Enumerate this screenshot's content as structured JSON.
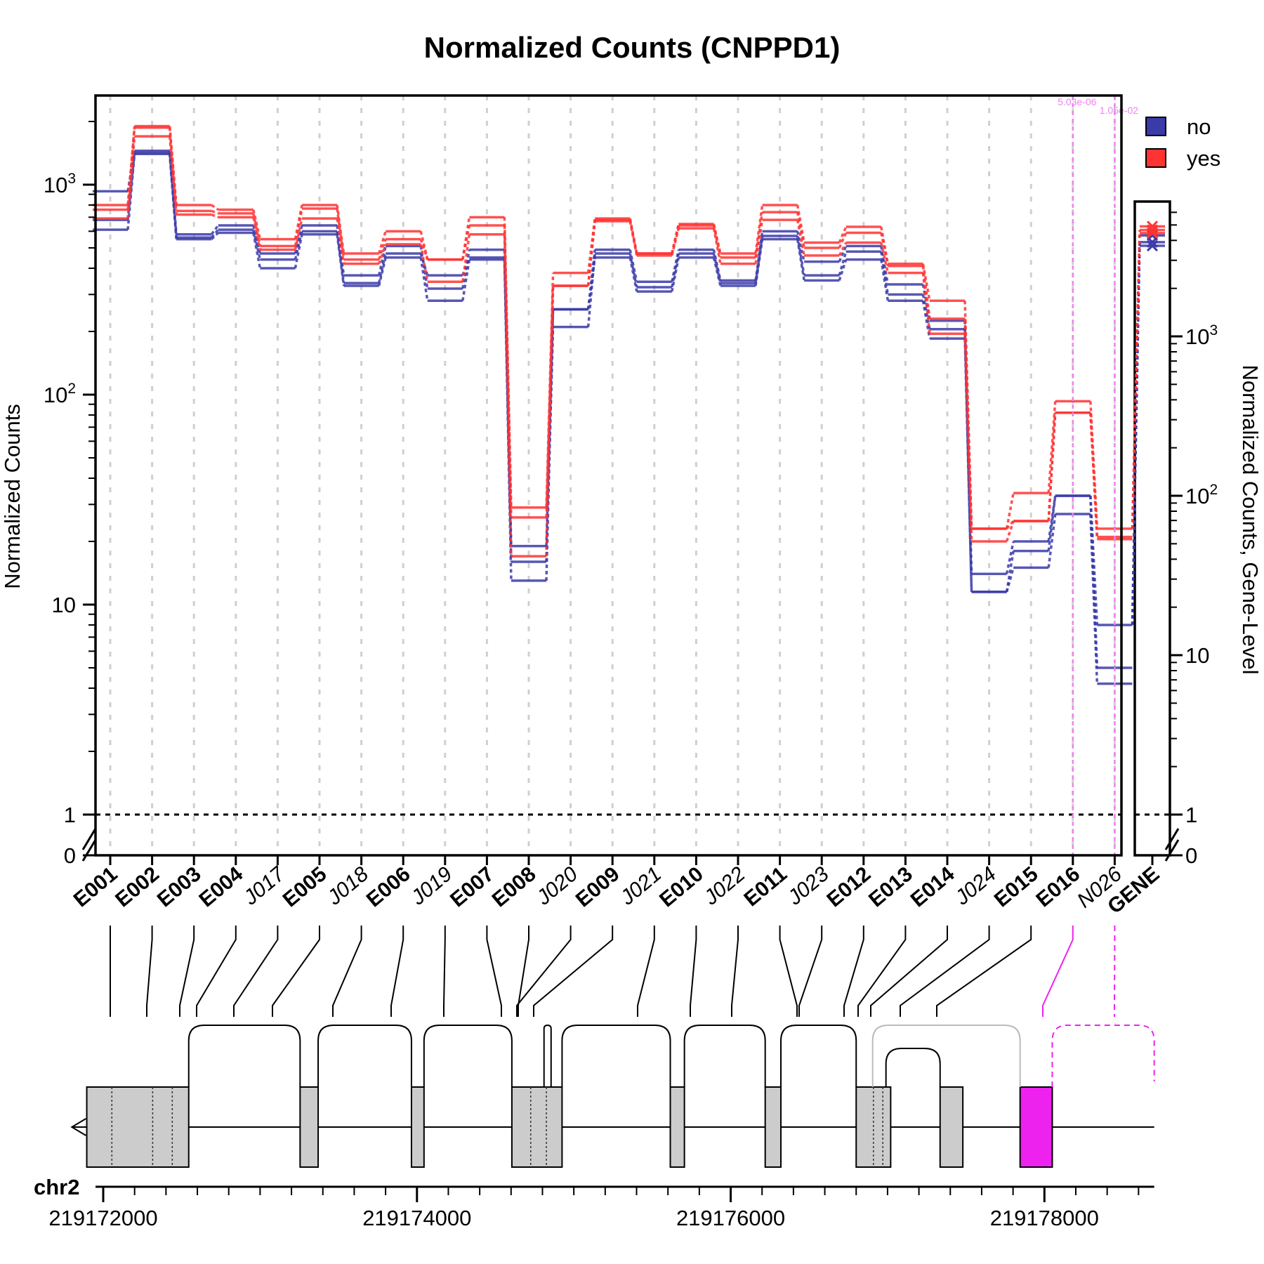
{
  "chart_data": {
    "type": "line",
    "title": "Normalized Counts (CNPPD1)",
    "ylabel": "Normalized Counts",
    "ylabel_right": "Normalized Counts, Gene-Level",
    "y_scale": "log",
    "ylim": [
      0,
      2500
    ],
    "y_ticks": [
      "0",
      "1",
      "10",
      "10^2",
      "10^3"
    ],
    "gene_y_ticks": [
      "0",
      "1",
      "10",
      "10^2",
      "10^3"
    ],
    "categories": [
      "E001",
      "E002",
      "E003",
      "E004",
      "J017",
      "E005",
      "J018",
      "E006",
      "J019",
      "E007",
      "E008",
      "J020",
      "E009",
      "J021",
      "E010",
      "J022",
      "E011",
      "J023",
      "E012",
      "E013",
      "E014",
      "J024",
      "E015",
      "E016",
      "N026"
    ],
    "category_style": [
      "exon",
      "exon",
      "exon",
      "exon",
      "junction",
      "exon",
      "junction",
      "exon",
      "junction",
      "exon",
      "exon",
      "junction",
      "exon",
      "junction",
      "exon",
      "junction",
      "exon",
      "junction",
      "exon",
      "exon",
      "exon",
      "junction",
      "exon",
      "exon",
      "novel"
    ],
    "gene_label": "GENE",
    "legend": [
      {
        "name": "no",
        "color": "#3a3aa8"
      },
      {
        "name": "yes",
        "color": "#ff3333"
      }
    ],
    "series": [
      {
        "name": "no",
        "color": "#3a3aa8",
        "values": [
          930,
          1450,
          580,
          640,
          470,
          640,
          370,
          510,
          320,
          490,
          19,
          255,
          490,
          345,
          490,
          350,
          600,
          430,
          510,
          335,
          225,
          14,
          20,
          33,
          8
        ]
      },
      {
        "name": "no",
        "color": "#3a3aa8",
        "values": [
          680,
          1420,
          560,
          610,
          440,
          600,
          340,
          470,
          370,
          450,
          16,
          210,
          470,
          325,
          470,
          340,
          570,
          370,
          480,
          300,
          205,
          11.5,
          18,
          33,
          5
        ]
      },
      {
        "name": "no",
        "color": "#3a3aa8",
        "values": [
          610,
          1400,
          550,
          590,
          400,
          580,
          330,
          450,
          280,
          440,
          13,
          255,
          450,
          310,
          450,
          330,
          550,
          350,
          440,
          280,
          185,
          11.5,
          15,
          27,
          4.2
        ]
      },
      {
        "name": "yes",
        "color": "#ff3333",
        "values": [
          800,
          1900,
          800,
          760,
          550,
          800,
          470,
          600,
          440,
          700,
          29,
          380,
          690,
          470,
          650,
          470,
          800,
          530,
          630,
          420,
          280,
          23,
          34,
          93,
          23
        ]
      },
      {
        "name": "yes",
        "color": "#ff3333",
        "values": [
          760,
          1870,
          750,
          730,
          510,
          770,
          440,
          550,
          440,
          640,
          26,
          330,
          680,
          470,
          640,
          450,
          740,
          500,
          590,
          410,
          230,
          23,
          25,
          82,
          21
        ]
      },
      {
        "name": "yes",
        "color": "#ff3333",
        "values": [
          690,
          1700,
          720,
          700,
          490,
          690,
          420,
          520,
          345,
          580,
          17,
          330,
          670,
          460,
          620,
          420,
          680,
          460,
          530,
          380,
          195,
          20,
          25,
          82,
          20.5
        ]
      }
    ],
    "gene_level": [
      {
        "name": "no",
        "color": "#3a3aa8",
        "values": [
          4300,
          3900,
          3700
        ]
      },
      {
        "name": "yes",
        "color": "#ff3333",
        "values": [
          4900,
          4650,
          4450
        ]
      }
    ],
    "pvalues": [
      {
        "feature": "E016",
        "text": "5.03e-06"
      },
      {
        "feature": "N026",
        "text": "1.05e-02"
      }
    ],
    "reference_line": 1,
    "genome": {
      "chromosome": "chr2",
      "strand": "-",
      "range": [
        219171700,
        219178800
      ],
      "coord_labels": [
        "219172000",
        "219174000",
        "219176000",
        "219178000"
      ]
    }
  }
}
